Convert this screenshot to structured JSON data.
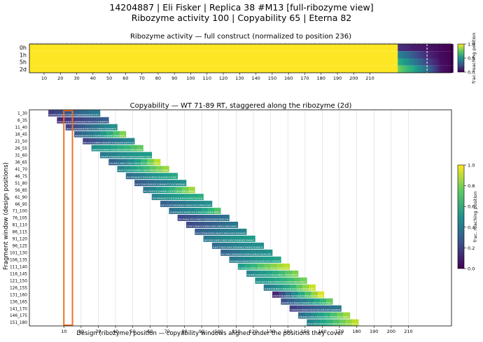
{
  "title": {
    "line1": "14204887  |  Eli Fisker  |  Replica 38 #M13  [full-ribozyme view]",
    "line2": "Ribozyme activity 100  |  Copyability 65  |  Eterna 82"
  },
  "chart_data": [
    {
      "type": "heatmap",
      "title": "Ribozyme activity — full construct (normalized to position 236)",
      "rows": [
        "0h",
        "1h",
        "5h",
        "2d"
      ],
      "x_ticks": [
        10,
        20,
        30,
        40,
        50,
        60,
        70,
        80,
        90,
        100,
        110,
        120,
        130,
        140,
        150,
        160,
        170,
        180,
        190,
        200,
        210
      ],
      "xlim": [
        1,
        260
      ],
      "design_end": 226,
      "normalization_position": 236,
      "dashed_marker_position": 245,
      "design_region_value": 1.0,
      "tail_profiles": {
        "0h": [
          [
            227,
            0.14
          ],
          [
            236,
            0.08
          ],
          [
            244,
            0.06
          ],
          [
            253,
            0.02
          ],
          [
            260,
            0.0
          ]
        ],
        "1h": [
          [
            227,
            0.45
          ],
          [
            236,
            0.28
          ],
          [
            244,
            0.12
          ],
          [
            253,
            0.03
          ],
          [
            260,
            0.0
          ]
        ],
        "5h": [
          [
            227,
            0.62
          ],
          [
            236,
            0.42
          ],
          [
            244,
            0.22
          ],
          [
            253,
            0.04
          ],
          [
            260,
            0.0
          ]
        ],
        "2d": [
          [
            227,
            0.78
          ],
          [
            236,
            0.6
          ],
          [
            244,
            0.38
          ],
          [
            253,
            0.06
          ],
          [
            260,
            0.0
          ]
        ]
      },
      "colorbar": {
        "label": "frac. reaching position",
        "ticks": [
          0.0,
          0.5,
          1.0
        ],
        "range": [
          0,
          1
        ]
      },
      "colormap": "viridis"
    },
    {
      "type": "heatmap",
      "title": "Copyability — WT 71-89 RT, staggered along the ribozyme (2d)",
      "ylabel": "Fragment window (design positions)",
      "xlabel": "Design (ribozyme) position — copyability windows aligned under the positions they cover",
      "x_ticks": [
        10,
        20,
        30,
        40,
        50,
        60,
        70,
        80,
        90,
        100,
        110,
        120,
        130,
        140,
        150,
        160,
        170,
        180,
        190,
        200,
        210
      ],
      "xlim": [
        -10,
        235
      ],
      "window_length": 30,
      "highlight_box": {
        "x_start": 10,
        "x_end": 15,
        "color": "#f07020"
      },
      "windows": [
        {
          "label": "1_30",
          "start": 1,
          "seq": "AGUCAUGGCCAGCCAAAGAACUCCCC",
          "profile": [
            0.18,
            0.3,
            0.42
          ]
        },
        {
          "label": "6_35",
          "start": 6,
          "seq": "GGCCAGCCAAAGAACUCCCCGUUCG",
          "profile": [
            0.12,
            0.22,
            0.3
          ]
        },
        {
          "label": "11_40",
          "start": 11,
          "seq": "GCCAAAGAACUCCCCGUUCGGAUCC",
          "profile": [
            0.2,
            0.35,
            0.5
          ]
        },
        {
          "label": "16_45",
          "start": 16,
          "seq": "AGAACUCCCCGUUCGGAUCCGGAAC",
          "profile": [
            0.3,
            0.48,
            0.8
          ]
        },
        {
          "label": "21_50",
          "start": 21,
          "seq": "UCCCCGUUCGGAUCCGGAACAUCCG",
          "profile": [
            0.2,
            0.35,
            0.45
          ]
        },
        {
          "label": "26_55",
          "start": 26,
          "seq": "GUUCGGAUCCGGAACAUCCGACGGA",
          "profile": [
            0.5,
            0.6,
            0.75
          ]
        },
        {
          "label": "31_60",
          "start": 31,
          "seq": "GAUCCGGAACAUCCGACGGAUCCGA",
          "profile": [
            0.4,
            0.5,
            0.55
          ]
        },
        {
          "label": "36_65",
          "start": 36,
          "seq": "GGAACAUCCGACGGAUCCGACGUGG",
          "profile": [
            0.3,
            0.5,
            0.9
          ]
        },
        {
          "label": "41_70",
          "start": 41,
          "seq": "AUCCGACGGAUCCGACGUGGCGAAU",
          "profile": [
            0.45,
            0.65,
            0.85
          ]
        },
        {
          "label": "46_75",
          "start": 46,
          "seq": "ACGGAUCCGACGUGGCGAAUCCCGC",
          "profile": [
            0.35,
            0.5,
            0.6
          ]
        },
        {
          "label": "51_80",
          "start": 51,
          "seq": "UCCGACGUGGCGAAUCCCGCUGUUG",
          "profile": [
            0.28,
            0.4,
            0.5
          ]
        },
        {
          "label": "56_85",
          "start": 56,
          "seq": "ACGUGGCGAAUCCCGCUGUUGCAAG",
          "profile": [
            0.4,
            0.6,
            0.85
          ]
        },
        {
          "label": "61_90",
          "start": 61,
          "seq": "GCGAAUCCCGCUGUUGCAAGCGCCA",
          "profile": [
            0.45,
            0.55,
            0.62
          ]
        },
        {
          "label": "66_95",
          "start": 66,
          "seq": "UCCCGCUGUUGCAAGCGCCAUCCGG",
          "profile": [
            0.3,
            0.42,
            0.5
          ]
        },
        {
          "label": "71_100",
          "start": 71,
          "seq": "CUGUUGCAAGCGCCAUCCGGUCGGC",
          "profile": [
            0.38,
            0.48,
            0.72
          ]
        },
        {
          "label": "76_105",
          "start": 76,
          "seq": "GCAAGCGCCAUCCGGUCGGCAUCCA",
          "profile": [
            0.22,
            0.3,
            0.38
          ]
        },
        {
          "label": "81_110",
          "start": 81,
          "seq": "CGCCAUCCGGUCGGCAUCCAGCAAC",
          "profile": [
            0.22,
            0.3,
            0.4
          ]
        },
        {
          "label": "86_115",
          "start": 86,
          "seq": "UCCGGUCGGCAUCCAGCAACGGUAG",
          "profile": [
            0.3,
            0.4,
            0.45
          ]
        },
        {
          "label": "91_120",
          "start": 91,
          "seq": "UCGGCAUCCAGCAACGGUAGCAAAC",
          "profile": [
            0.4,
            0.5,
            0.55
          ]
        },
        {
          "label": "96_125",
          "start": 96,
          "seq": "AUCCAGCAACGGUAGCAAACGUUCG",
          "profile": [
            0.35,
            0.45,
            0.5
          ]
        },
        {
          "label": "101_130",
          "start": 101,
          "seq": "GCAACGGUAGCAAACGUUCGAACGC",
          "profile": [
            0.32,
            0.45,
            0.5
          ]
        },
        {
          "label": "106_135",
          "start": 106,
          "seq": "GGUAGCAAACGUUCGAACGCCAGCG",
          "profile": [
            0.4,
            0.5,
            0.58
          ]
        },
        {
          "label": "111_140",
          "start": 111,
          "seq": "CAAACGUUCGAACGCCAGCGUUCCG",
          "profile": [
            0.55,
            0.75,
            0.9
          ]
        },
        {
          "label": "116_145",
          "start": 116,
          "seq": "GUUCGAACGCCAGCGUUCCGGAUCG",
          "profile": [
            0.45,
            0.6,
            0.8
          ]
        },
        {
          "label": "121_150",
          "start": 121,
          "seq": "AACGCCAGCGUUCCGGAUCGCGGAC",
          "profile": [
            0.5,
            0.62,
            0.78
          ]
        },
        {
          "label": "126_155",
          "start": 126,
          "seq": "CAGCGUUCCGGAUCGCGGACUGGAC",
          "profile": [
            0.4,
            0.62,
            0.92
          ]
        },
        {
          "label": "131_160",
          "start": 131,
          "seq": "UUCCGGAUCGCGGACUGGACGACUC",
          "profile": [
            0.1,
            0.55,
            0.95
          ]
        },
        {
          "label": "136_165",
          "start": 136,
          "seq": "GAUCGCGGACUGGACGACUCGACUC",
          "profile": [
            0.25,
            0.45,
            0.75
          ]
        },
        {
          "label": "141_170",
          "start": 141,
          "seq": "CGGACUGGACGACUCGACUCGGUAG",
          "profile": [
            0.18,
            0.3,
            0.4
          ]
        },
        {
          "label": "146_175",
          "start": 146,
          "seq": "UGGACGACUCGACUCGGUAGCAGUC",
          "profile": [
            0.35,
            0.6,
            0.85
          ]
        },
        {
          "label": "151_180",
          "start": 151,
          "seq": "GACUCGACUCGGUAGCAGUCCGACG",
          "profile": [
            0.45,
            0.68,
            0.9
          ]
        }
      ],
      "colorbar": {
        "label": "frac. reaching position",
        "ticks": [
          0.0,
          0.2,
          0.4,
          0.6,
          0.8,
          1.0
        ],
        "range": [
          0,
          1
        ]
      },
      "colormap": "viridis"
    }
  ]
}
